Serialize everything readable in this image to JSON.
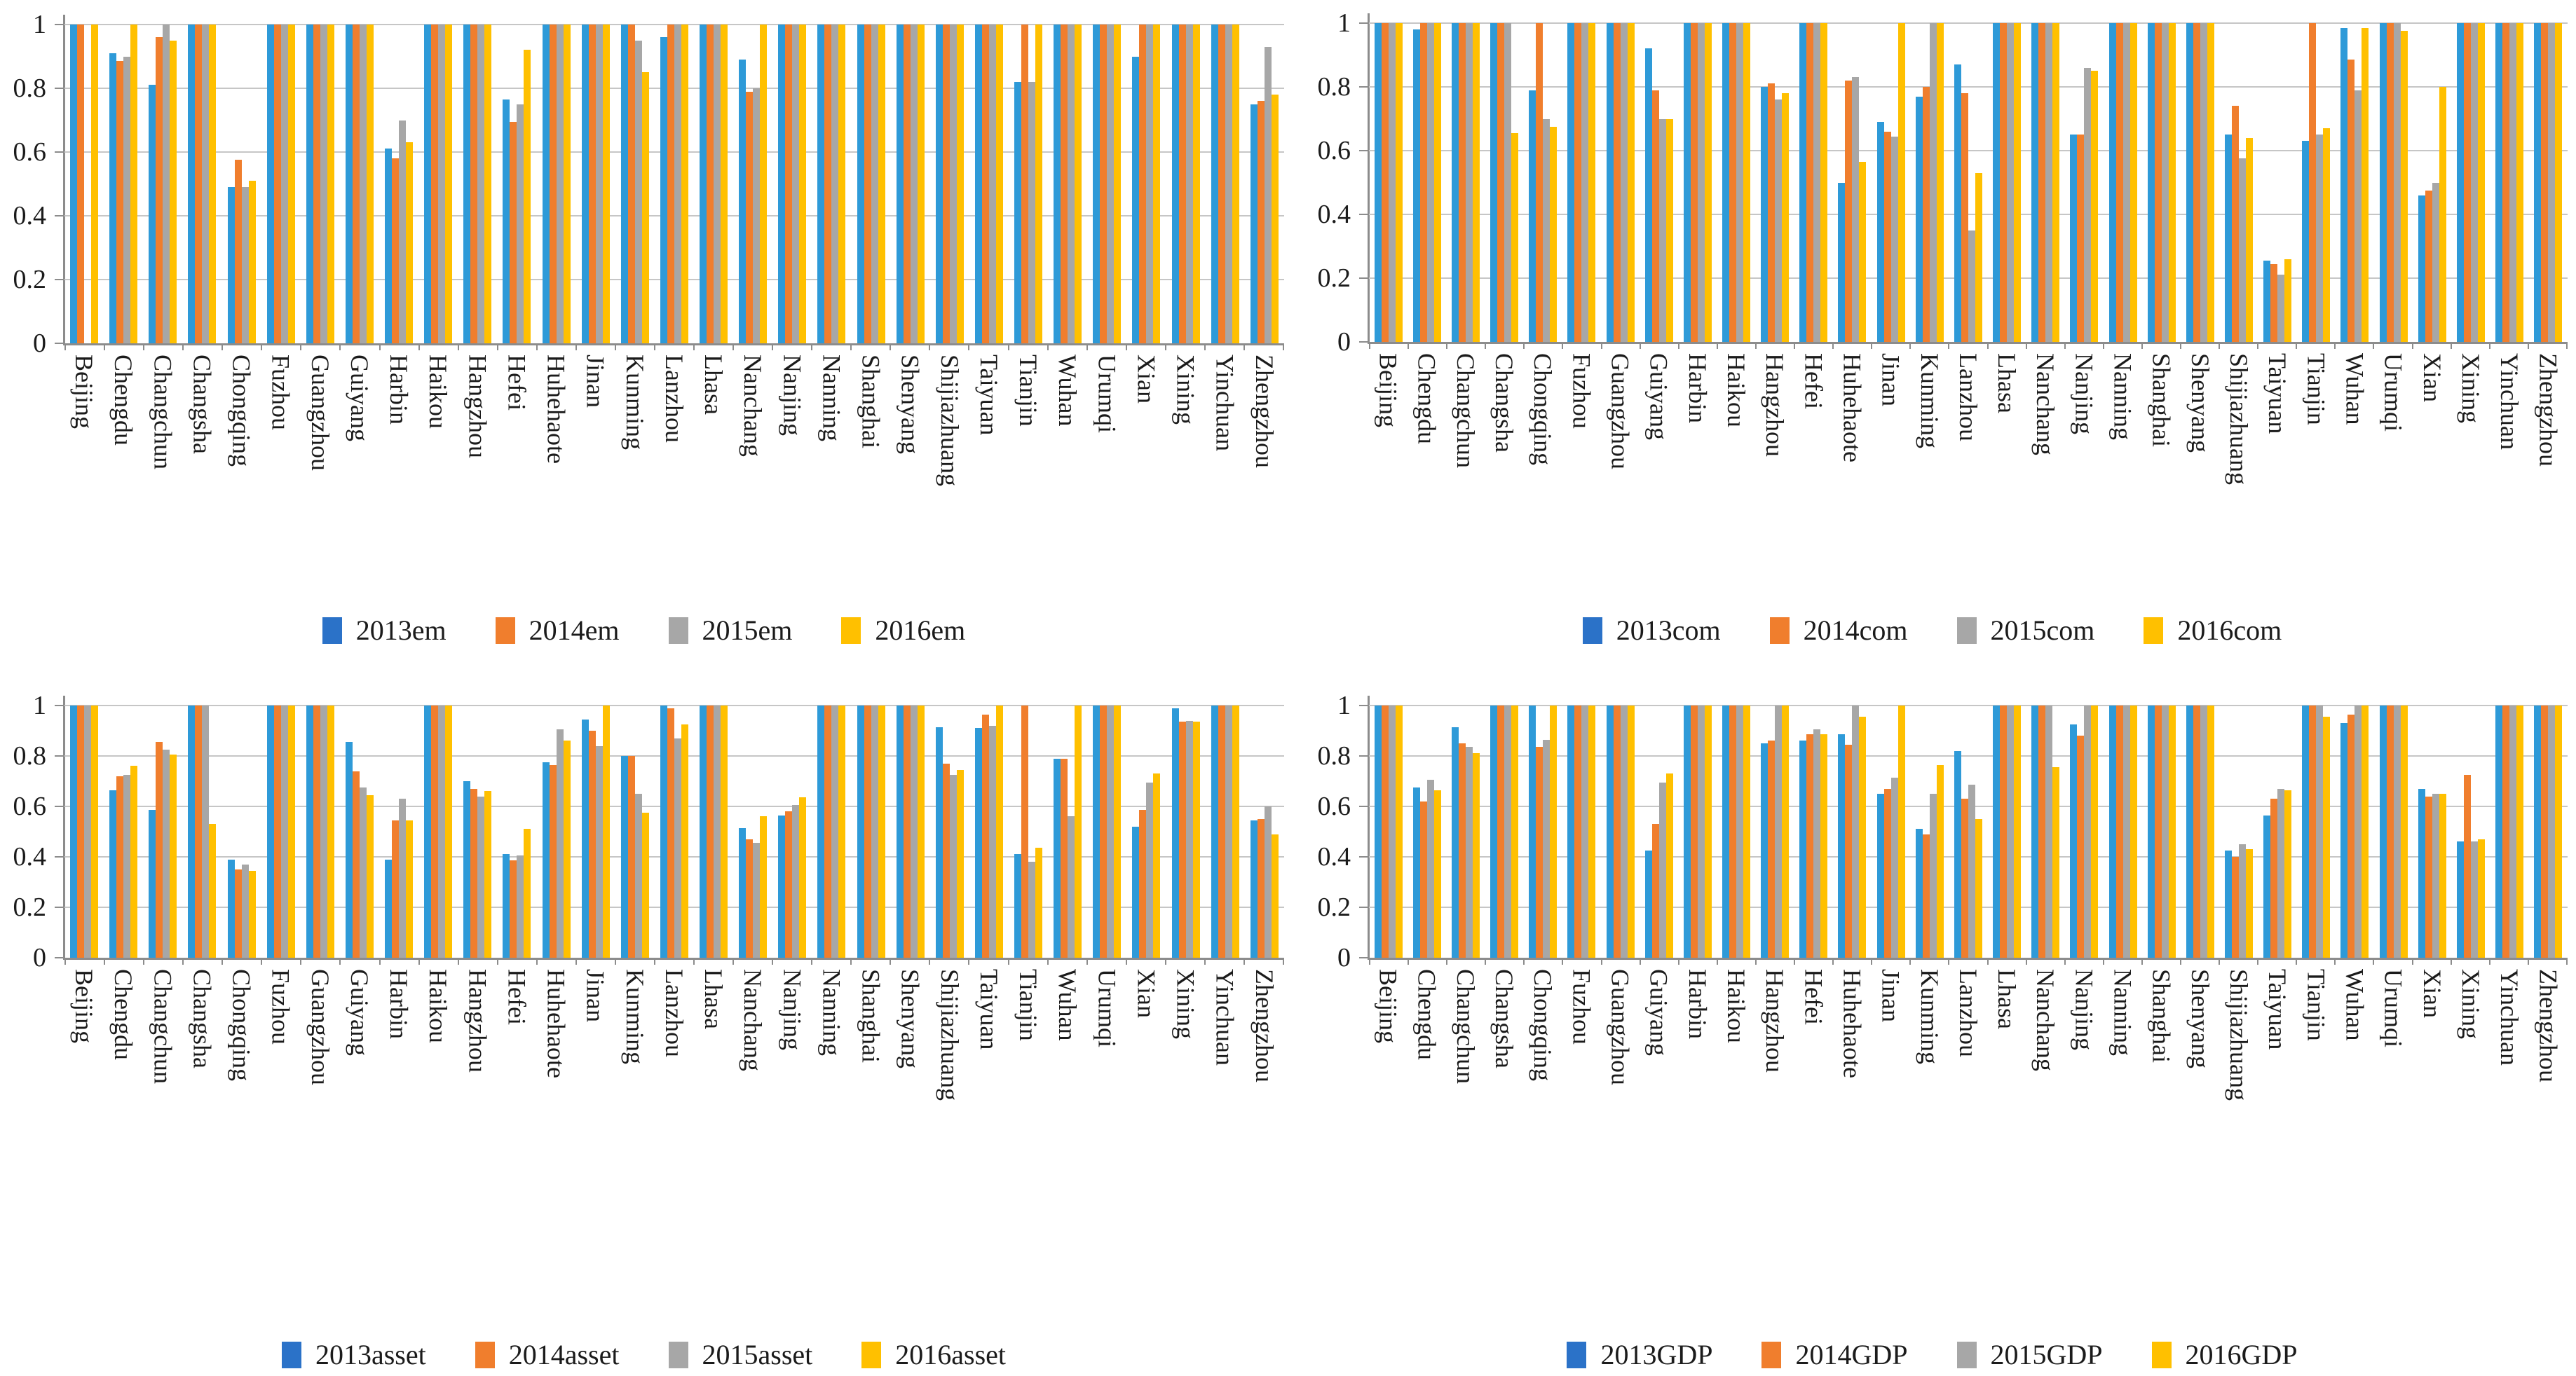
{
  "palette": {
    "blue_bar": "#2E9AD8",
    "blue_legend": "#2B72C8",
    "orange": "#F07E2D",
    "gray": "#A7A7A7",
    "yellow": "#FFC000",
    "gridline": "#C6C6C6",
    "axis": "#8C8C8C",
    "text": "#1B1B1B"
  },
  "chart_data": [
    {
      "type": "bar",
      "position": "top-left",
      "id": "em",
      "title": "",
      "xlabel": "",
      "ylabel": "",
      "ylim": [
        0,
        1
      ],
      "yticks": [
        0,
        0.2,
        0.4,
        0.6,
        0.8,
        1
      ],
      "ytick_labels": [
        "0",
        "0.2",
        "0.4",
        "0.6",
        "0.8",
        "1"
      ],
      "grid": true,
      "legend_position": "bottom",
      "legend": [
        "2013em",
        "2014em",
        "2015em",
        "2016em"
      ],
      "categories": [
        "Beijing",
        "Chengdu",
        "Changchun",
        "Changsha",
        "Chongqing",
        "Fuzhou",
        "Guangzhou",
        "Guiyang",
        "Harbin",
        "Haikou",
        "Hangzhou",
        "Hefei",
        "Huhehaote",
        "Jinan",
        "Kunming",
        "Lanzhou",
        "Lhasa",
        "Nanchang",
        "Nanjing",
        "Nanning",
        "Shanghai",
        "Shenyang",
        "Shijiazhuang",
        "Taiyuan",
        "Tianjin",
        "Wuhan",
        "Urumqi",
        "Xian",
        "Xining",
        "Yinchuan",
        "Zhengzhou"
      ],
      "series": [
        {
          "name": "2013em",
          "color_key": "blue",
          "values": [
            1,
            0.91,
            0.81,
            1,
            0.49,
            1,
            1,
            1,
            0.61,
            1,
            1,
            0.765,
            1,
            1,
            1,
            0.96,
            1,
            0.89,
            1,
            1,
            1,
            1,
            1,
            1,
            0.82,
            1,
            1,
            0.9,
            1,
            1,
            0.75
          ]
        },
        {
          "name": "2014em",
          "color_key": "orange",
          "values": [
            1,
            0.885,
            0.96,
            1,
            0.575,
            1,
            1,
            1,
            0.58,
            1,
            1,
            0.695,
            1,
            1,
            1,
            1,
            1,
            0.79,
            1,
            1,
            1,
            1,
            1,
            1,
            1,
            1,
            1,
            1,
            1,
            1,
            0.76
          ]
        },
        {
          "name": "2015em",
          "color_key": "gray",
          "values": [
            0,
            0.9,
            1,
            1,
            0.49,
            1,
            1,
            1,
            0.7,
            1,
            1,
            0.75,
            1,
            1,
            0.95,
            1,
            1,
            0.8,
            1,
            1,
            1,
            1,
            1,
            1,
            0.82,
            1,
            1,
            1,
            1,
            1,
            0.93
          ]
        },
        {
          "name": "2016em",
          "color_key": "yellow",
          "values": [
            1,
            1,
            0.95,
            1,
            0.51,
            1,
            1,
            1,
            0.63,
            1,
            1,
            0.92,
            1,
            1,
            0.85,
            1,
            1,
            1,
            1,
            1,
            1,
            1,
            1,
            1,
            1,
            1,
            1,
            1,
            1,
            1,
            0.78
          ]
        }
      ]
    },
    {
      "type": "bar",
      "position": "top-right",
      "id": "com",
      "title": "",
      "xlabel": "",
      "ylabel": "",
      "ylim": [
        0,
        1
      ],
      "yticks": [
        0,
        0.2,
        0.4,
        0.6,
        0.8,
        1
      ],
      "ytick_labels": [
        "0",
        "0.2",
        "0.4",
        "0.6",
        "0.8",
        "1"
      ],
      "grid": true,
      "legend_position": "bottom",
      "legend": [
        "2013com",
        "2014com",
        "2015com",
        "2016com"
      ],
      "categories": [
        "Beijing",
        "Chengdu",
        "Changchun",
        "Changsha",
        "Chongqing",
        "Fuzhou",
        "Guangzhou",
        "Guiyang",
        "Harbin",
        "Haikou",
        "Hangzhou",
        "Hefei",
        "Huhehaote",
        "Jinan",
        "Kunming",
        "Lanzhou",
        "Lhasa",
        "Nanchang",
        "Nanjing",
        "Nanning",
        "Shanghai",
        "Shenyang",
        "Shijiazhuang",
        "Taiyuan",
        "Tianjin",
        "Wuhan",
        "Urumqi",
        "Xian",
        "Xining",
        "Yinchuan",
        "Zhengzhou"
      ],
      "series": [
        {
          "name": "2013com",
          "color_key": "blue",
          "values": [
            1,
            0.98,
            1,
            1,
            0.79,
            1,
            1,
            0.92,
            1,
            1,
            0.8,
            1,
            0.5,
            0.69,
            0.77,
            0.87,
            1,
            1,
            0.65,
            1,
            1,
            1,
            0.65,
            0.255,
            0.63,
            0.985,
            1,
            0.46,
            1,
            1,
            1
          ]
        },
        {
          "name": "2014com",
          "color_key": "orange",
          "values": [
            1,
            1,
            1,
            1,
            1,
            1,
            1,
            0.79,
            1,
            1,
            0.81,
            1,
            0.82,
            0.66,
            0.8,
            0.78,
            1,
            1,
            0.65,
            1,
            1,
            1,
            0.74,
            0.245,
            1,
            0.885,
            1,
            0.475,
            1,
            1,
            1
          ]
        },
        {
          "name": "2015com",
          "color_key": "gray",
          "values": [
            1,
            1,
            1,
            1,
            0.7,
            1,
            1,
            0.7,
            1,
            1,
            0.76,
            1,
            0.83,
            0.645,
            1,
            0.35,
            1,
            1,
            0.86,
            1,
            1,
            1,
            0.575,
            0.21,
            0.65,
            0.79,
            1,
            0.5,
            1,
            1,
            1
          ]
        },
        {
          "name": "2016com",
          "color_key": "yellow",
          "values": [
            1,
            1,
            1,
            0.655,
            0.675,
            1,
            1,
            0.7,
            1,
            1,
            0.78,
            1,
            0.565,
            1,
            1,
            0.53,
            1,
            1,
            0.85,
            1,
            1,
            1,
            0.64,
            0.26,
            0.67,
            0.985,
            0.975,
            0.8,
            1,
            1,
            1
          ]
        }
      ]
    },
    {
      "type": "bar",
      "position": "bottom-left",
      "id": "asset",
      "title": "",
      "xlabel": "",
      "ylabel": "",
      "ylim": [
        0,
        1
      ],
      "yticks": [
        0,
        0.2,
        0.4,
        0.6,
        0.8,
        1
      ],
      "ytick_labels": [
        "0",
        "0.2",
        "0.4",
        "0.6",
        "0.8",
        "1"
      ],
      "grid": true,
      "legend_position": "bottom",
      "legend": [
        "2013asset",
        "2014asset",
        "2015asset",
        "2016asset"
      ],
      "categories": [
        "Beijing",
        "Chengdu",
        "Changchun",
        "Changsha",
        "Chongqing",
        "Fuzhou",
        "Guangzhou",
        "Guiyang",
        "Harbin",
        "Haikou",
        "Hangzhou",
        "Hefei",
        "Huhehaote",
        "Jinan",
        "Kunming",
        "Lanzhou",
        "Lhasa",
        "Nanchang",
        "Nanjing",
        "Nanning",
        "Shanghai",
        "Shenyang",
        "Shijiazhuang",
        "Taiyuan",
        "Tianjin",
        "Wuhan",
        "Urumqi",
        "Xian",
        "Xining",
        "Yinchuan",
        "Zhengzhou"
      ],
      "series": [
        {
          "name": "2013asset",
          "color_key": "blue",
          "values": [
            1,
            0.665,
            0.585,
            1,
            0.39,
            1,
            1,
            0.855,
            0.39,
            1,
            0.7,
            0.41,
            0.775,
            0.945,
            0.8,
            1,
            1,
            0.515,
            0.565,
            1,
            1,
            1,
            0.915,
            0.91,
            0.41,
            0.79,
            1,
            0.52,
            0.99,
            1,
            0.545
          ]
        },
        {
          "name": "2014asset",
          "color_key": "orange",
          "values": [
            1,
            0.72,
            0.855,
            1,
            0.35,
            1,
            1,
            0.74,
            0.545,
            1,
            0.67,
            0.385,
            0.765,
            0.9,
            0.8,
            0.99,
            1,
            0.47,
            0.58,
            1,
            1,
            1,
            0.77,
            0.965,
            1,
            0.79,
            1,
            0.585,
            0.935,
            1,
            0.55
          ]
        },
        {
          "name": "2015asset",
          "color_key": "gray",
          "values": [
            1,
            0.725,
            0.825,
            1,
            0.37,
            1,
            1,
            0.675,
            0.63,
            1,
            0.64,
            0.405,
            0.905,
            0.84,
            0.65,
            0.87,
            1,
            0.455,
            0.605,
            1,
            1,
            1,
            0.725,
            0.92,
            0.38,
            0.56,
            1,
            0.695,
            0.94,
            1,
            0.6
          ]
        },
        {
          "name": "2016asset",
          "color_key": "yellow",
          "values": [
            1,
            0.76,
            0.805,
            0.53,
            0.345,
            1,
            1,
            0.645,
            0.545,
            1,
            0.66,
            0.51,
            0.86,
            1,
            0.575,
            0.925,
            1,
            0.56,
            0.635,
            1,
            1,
            1,
            0.745,
            1,
            0.435,
            1,
            1,
            0.73,
            0.935,
            1,
            0.49
          ]
        }
      ]
    },
    {
      "type": "bar",
      "position": "bottom-right",
      "id": "GDP",
      "title": "",
      "xlabel": "",
      "ylabel": "",
      "ylim": [
        0,
        1
      ],
      "yticks": [
        0,
        0.2,
        0.4,
        0.6,
        0.8,
        1
      ],
      "ytick_labels": [
        "0",
        "0.2",
        "0.4",
        "0.6",
        "0.8",
        "1"
      ],
      "grid": true,
      "legend_position": "bottom",
      "legend": [
        "2013GDP",
        "2014GDP",
        "2015GDP",
        "2016GDP"
      ],
      "categories": [
        "Beijing",
        "Chengdu",
        "Changchun",
        "Changsha",
        "Chongqing",
        "Fuzhou",
        "Guangzhou",
        "Guiyang",
        "Harbin",
        "Haikou",
        "Hangzhou",
        "Hefei",
        "Huhehaote",
        "Jinan",
        "Kunming",
        "Lanzhou",
        "Lhasa",
        "Nanchang",
        "Nanjing",
        "Nanning",
        "Shanghai",
        "Shenyang",
        "Shijiazhuang",
        "Taiyuan",
        "Tianjin",
        "Wuhan",
        "Urumqi",
        "Xian",
        "Xining",
        "Yinchuan",
        "Zhengzhou"
      ],
      "series": [
        {
          "name": "2013GDP",
          "color_key": "blue",
          "values": [
            1,
            0.675,
            0.915,
            1,
            1,
            1,
            1,
            0.425,
            1,
            1,
            0.85,
            0.86,
            0.885,
            0.65,
            0.51,
            0.82,
            1,
            1,
            0.925,
            1,
            1,
            1,
            0.425,
            0.565,
            1,
            0.93,
            1,
            0.67,
            0.46,
            1,
            1
          ]
        },
        {
          "name": "2014GDP",
          "color_key": "orange",
          "values": [
            1,
            0.62,
            0.85,
            1,
            0.835,
            1,
            1,
            0.53,
            1,
            1,
            0.86,
            0.885,
            0.845,
            0.67,
            0.49,
            0.63,
            1,
            1,
            0.88,
            1,
            1,
            1,
            0.4,
            0.63,
            1,
            0.965,
            1,
            0.64,
            0.725,
            1,
            1
          ]
        },
        {
          "name": "2015GDP",
          "color_key": "gray",
          "values": [
            1,
            0.705,
            0.835,
            1,
            0.865,
            1,
            1,
            0.695,
            1,
            1,
            1,
            0.905,
            1,
            0.715,
            0.65,
            0.685,
            1,
            1,
            1,
            1,
            1,
            1,
            0.45,
            0.67,
            1,
            1,
            1,
            0.65,
            0.46,
            1,
            1
          ]
        },
        {
          "name": "2016GDP",
          "color_key": "yellow",
          "values": [
            1,
            0.665,
            0.81,
            1,
            1,
            1,
            1,
            0.73,
            1,
            1,
            1,
            0.885,
            0.955,
            1,
            0.765,
            0.55,
            1,
            0.755,
            1,
            1,
            1,
            1,
            0.43,
            0.665,
            0.955,
            1,
            1,
            0.65,
            0.47,
            1,
            1
          ]
        }
      ]
    }
  ]
}
